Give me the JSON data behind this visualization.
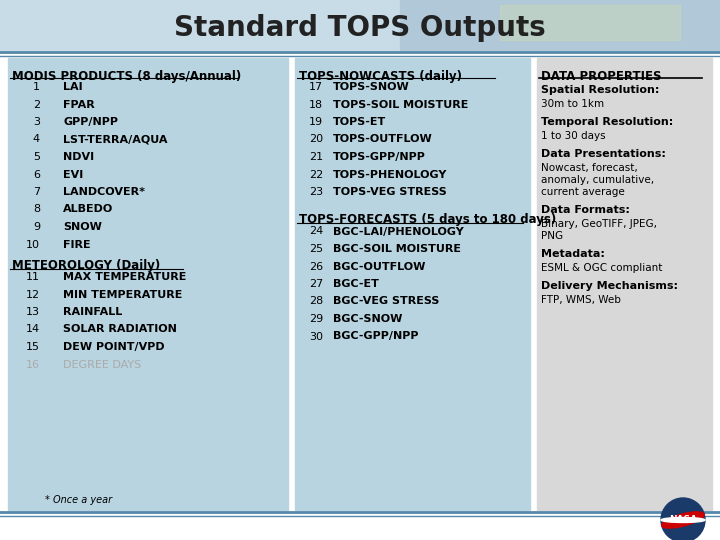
{
  "title": "Standard TOPS Outputs",
  "title_fontsize": 20,
  "title_fontweight": "bold",
  "bg_color": "#ffffff",
  "col1_bg": "#b8d4e0",
  "col2_bg": "#b8d4e0",
  "col3_bg": "#d8d8d8",
  "col1_header": "MODIS PRODUCTS (8 days/Annual)",
  "col1_subheader": "METEOROLOGY (Daily)",
  "col1_items": [
    [
      "1",
      "LAI"
    ],
    [
      "2",
      "FPAR"
    ],
    [
      "3",
      "GPP/NPP"
    ],
    [
      "4",
      "LST-TERRA/AQUA"
    ],
    [
      "5",
      "NDVI"
    ],
    [
      "6",
      "EVI"
    ],
    [
      "7",
      "LANDCOVER*"
    ],
    [
      "8",
      "ALBEDO"
    ],
    [
      "9",
      "SNOW"
    ],
    [
      "10",
      "FIRE"
    ]
  ],
  "col1_meteo_items": [
    [
      "11",
      "MAX TEMPERATURE"
    ],
    [
      "12",
      "MIN TEMPERATURE"
    ],
    [
      "13",
      "RAINFALL"
    ],
    [
      "14",
      "SOLAR RADIATION"
    ],
    [
      "15",
      "DEW POINT/VPD"
    ],
    [
      "16",
      "DEGREE DAYS"
    ]
  ],
  "col1_footnote": "* Once a year",
  "col2_header1": "TOPS-NOWCASTS (daily)",
  "col2_items1": [
    [
      "17",
      "TOPS-SNOW"
    ],
    [
      "18",
      "TOPS-SOIL MOISTURE"
    ],
    [
      "19",
      "TOPS-ET"
    ],
    [
      "20",
      "TOPS-OUTFLOW"
    ],
    [
      "21",
      "TOPS-GPP/NPP"
    ],
    [
      "22",
      "TOPS-PHENOLOGY"
    ],
    [
      "23",
      "TOPS-VEG STRESS"
    ]
  ],
  "col2_header2": "TOPS-FORECASTS (5 days to 180 days)",
  "col2_items2": [
    [
      "24",
      "BGC-LAI/PHENOLOGY"
    ],
    [
      "25",
      "BGC-SOIL MOISTURE"
    ],
    [
      "26",
      "BGC-OUTFLOW"
    ],
    [
      "27",
      "BGC-ET"
    ],
    [
      "28",
      "BGC-VEG STRESS"
    ],
    [
      "29",
      "BGC-SNOW"
    ],
    [
      "30",
      "BGC-GPP/NPP"
    ]
  ],
  "col3_header": "DATA PROPERTIES",
  "col3_items": [
    {
      "label": "Spatial Resolution:",
      "text": "30m to 1km"
    },
    {
      "label": "Temporal Resolution:",
      "text": "1 to 30 days"
    },
    {
      "label": "Data Presentations:",
      "text": "Nowcast, forecast,\nanomaly, cumulative,\ncurrent average"
    },
    {
      "label": "Data Formats:",
      "text": "Binary, GeoTIFF, JPEG,\nPNG"
    },
    {
      "label": "Metadata:",
      "text": "ESML & OGC compliant"
    },
    {
      "label": "Delivery Mechanisms:",
      "text": "FTP, WMS, Web"
    }
  ],
  "bar_color": "#5588aa",
  "col16_gray": "#aaaaaa",
  "title_area_color": "#c8dce8",
  "map_color1": "#b0c8d8",
  "map_color2": "#c8d8b8"
}
